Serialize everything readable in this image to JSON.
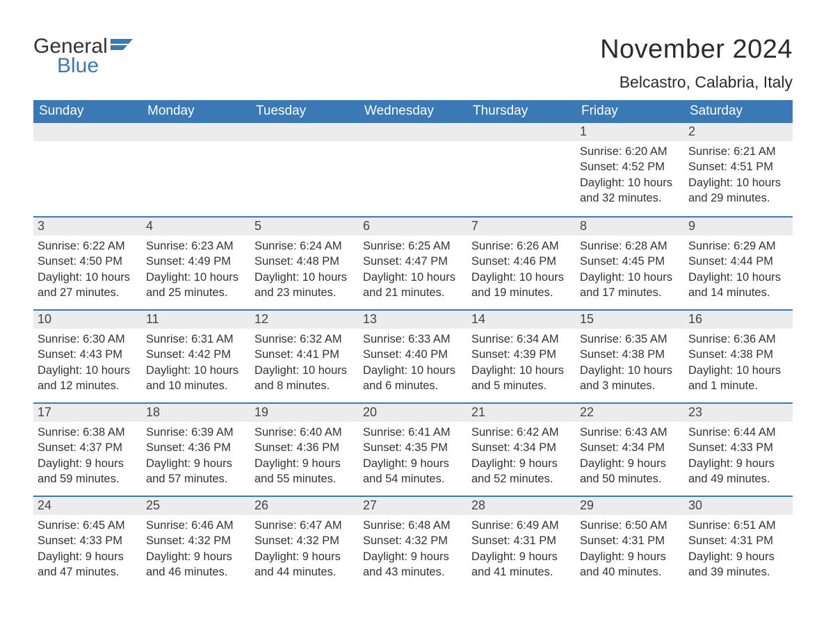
{
  "logo": {
    "word1": "General",
    "word2": "Blue",
    "flag_color": "#3a78b6"
  },
  "title": "November 2024",
  "location": "Belcastro, Calabria, Italy",
  "colors": {
    "header_bg": "#3a78b6",
    "header_text": "#ffffff",
    "daynum_bg": "#ececec",
    "border": "#3a78b6",
    "text": "#333333",
    "background": "#ffffff"
  },
  "fonts": {
    "title_size": 38,
    "location_size": 23,
    "weekday_size": 19,
    "body_size": 16.5
  },
  "weekdays": [
    "Sunday",
    "Monday",
    "Tuesday",
    "Wednesday",
    "Thursday",
    "Friday",
    "Saturday"
  ],
  "weeks": [
    [
      {
        "blank": true
      },
      {
        "blank": true
      },
      {
        "blank": true
      },
      {
        "blank": true
      },
      {
        "blank": true
      },
      {
        "n": "1",
        "sr": "Sunrise: 6:20 AM",
        "ss": "Sunset: 4:52 PM",
        "d1": "Daylight: 10 hours",
        "d2": "and 32 minutes."
      },
      {
        "n": "2",
        "sr": "Sunrise: 6:21 AM",
        "ss": "Sunset: 4:51 PM",
        "d1": "Daylight: 10 hours",
        "d2": "and 29 minutes."
      }
    ],
    [
      {
        "n": "3",
        "sr": "Sunrise: 6:22 AM",
        "ss": "Sunset: 4:50 PM",
        "d1": "Daylight: 10 hours",
        "d2": "and 27 minutes."
      },
      {
        "n": "4",
        "sr": "Sunrise: 6:23 AM",
        "ss": "Sunset: 4:49 PM",
        "d1": "Daylight: 10 hours",
        "d2": "and 25 minutes."
      },
      {
        "n": "5",
        "sr": "Sunrise: 6:24 AM",
        "ss": "Sunset: 4:48 PM",
        "d1": "Daylight: 10 hours",
        "d2": "and 23 minutes."
      },
      {
        "n": "6",
        "sr": "Sunrise: 6:25 AM",
        "ss": "Sunset: 4:47 PM",
        "d1": "Daylight: 10 hours",
        "d2": "and 21 minutes."
      },
      {
        "n": "7",
        "sr": "Sunrise: 6:26 AM",
        "ss": "Sunset: 4:46 PM",
        "d1": "Daylight: 10 hours",
        "d2": "and 19 minutes."
      },
      {
        "n": "8",
        "sr": "Sunrise: 6:28 AM",
        "ss": "Sunset: 4:45 PM",
        "d1": "Daylight: 10 hours",
        "d2": "and 17 minutes."
      },
      {
        "n": "9",
        "sr": "Sunrise: 6:29 AM",
        "ss": "Sunset: 4:44 PM",
        "d1": "Daylight: 10 hours",
        "d2": "and 14 minutes."
      }
    ],
    [
      {
        "n": "10",
        "sr": "Sunrise: 6:30 AM",
        "ss": "Sunset: 4:43 PM",
        "d1": "Daylight: 10 hours",
        "d2": "and 12 minutes."
      },
      {
        "n": "11",
        "sr": "Sunrise: 6:31 AM",
        "ss": "Sunset: 4:42 PM",
        "d1": "Daylight: 10 hours",
        "d2": "and 10 minutes."
      },
      {
        "n": "12",
        "sr": "Sunrise: 6:32 AM",
        "ss": "Sunset: 4:41 PM",
        "d1": "Daylight: 10 hours",
        "d2": "and 8 minutes."
      },
      {
        "n": "13",
        "sr": "Sunrise: 6:33 AM",
        "ss": "Sunset: 4:40 PM",
        "d1": "Daylight: 10 hours",
        "d2": "and 6 minutes."
      },
      {
        "n": "14",
        "sr": "Sunrise: 6:34 AM",
        "ss": "Sunset: 4:39 PM",
        "d1": "Daylight: 10 hours",
        "d2": "and 5 minutes."
      },
      {
        "n": "15",
        "sr": "Sunrise: 6:35 AM",
        "ss": "Sunset: 4:38 PM",
        "d1": "Daylight: 10 hours",
        "d2": "and 3 minutes."
      },
      {
        "n": "16",
        "sr": "Sunrise: 6:36 AM",
        "ss": "Sunset: 4:38 PM",
        "d1": "Daylight: 10 hours",
        "d2": "and 1 minute."
      }
    ],
    [
      {
        "n": "17",
        "sr": "Sunrise: 6:38 AM",
        "ss": "Sunset: 4:37 PM",
        "d1": "Daylight: 9 hours",
        "d2": "and 59 minutes."
      },
      {
        "n": "18",
        "sr": "Sunrise: 6:39 AM",
        "ss": "Sunset: 4:36 PM",
        "d1": "Daylight: 9 hours",
        "d2": "and 57 minutes."
      },
      {
        "n": "19",
        "sr": "Sunrise: 6:40 AM",
        "ss": "Sunset: 4:36 PM",
        "d1": "Daylight: 9 hours",
        "d2": "and 55 minutes."
      },
      {
        "n": "20",
        "sr": "Sunrise: 6:41 AM",
        "ss": "Sunset: 4:35 PM",
        "d1": "Daylight: 9 hours",
        "d2": "and 54 minutes."
      },
      {
        "n": "21",
        "sr": "Sunrise: 6:42 AM",
        "ss": "Sunset: 4:34 PM",
        "d1": "Daylight: 9 hours",
        "d2": "and 52 minutes."
      },
      {
        "n": "22",
        "sr": "Sunrise: 6:43 AM",
        "ss": "Sunset: 4:34 PM",
        "d1": "Daylight: 9 hours",
        "d2": "and 50 minutes."
      },
      {
        "n": "23",
        "sr": "Sunrise: 6:44 AM",
        "ss": "Sunset: 4:33 PM",
        "d1": "Daylight: 9 hours",
        "d2": "and 49 minutes."
      }
    ],
    [
      {
        "n": "24",
        "sr": "Sunrise: 6:45 AM",
        "ss": "Sunset: 4:33 PM",
        "d1": "Daylight: 9 hours",
        "d2": "and 47 minutes."
      },
      {
        "n": "25",
        "sr": "Sunrise: 6:46 AM",
        "ss": "Sunset: 4:32 PM",
        "d1": "Daylight: 9 hours",
        "d2": "and 46 minutes."
      },
      {
        "n": "26",
        "sr": "Sunrise: 6:47 AM",
        "ss": "Sunset: 4:32 PM",
        "d1": "Daylight: 9 hours",
        "d2": "and 44 minutes."
      },
      {
        "n": "27",
        "sr": "Sunrise: 6:48 AM",
        "ss": "Sunset: 4:32 PM",
        "d1": "Daylight: 9 hours",
        "d2": "and 43 minutes."
      },
      {
        "n": "28",
        "sr": "Sunrise: 6:49 AM",
        "ss": "Sunset: 4:31 PM",
        "d1": "Daylight: 9 hours",
        "d2": "and 41 minutes."
      },
      {
        "n": "29",
        "sr": "Sunrise: 6:50 AM",
        "ss": "Sunset: 4:31 PM",
        "d1": "Daylight: 9 hours",
        "d2": "and 40 minutes."
      },
      {
        "n": "30",
        "sr": "Sunrise: 6:51 AM",
        "ss": "Sunset: 4:31 PM",
        "d1": "Daylight: 9 hours",
        "d2": "and 39 minutes."
      }
    ]
  ]
}
